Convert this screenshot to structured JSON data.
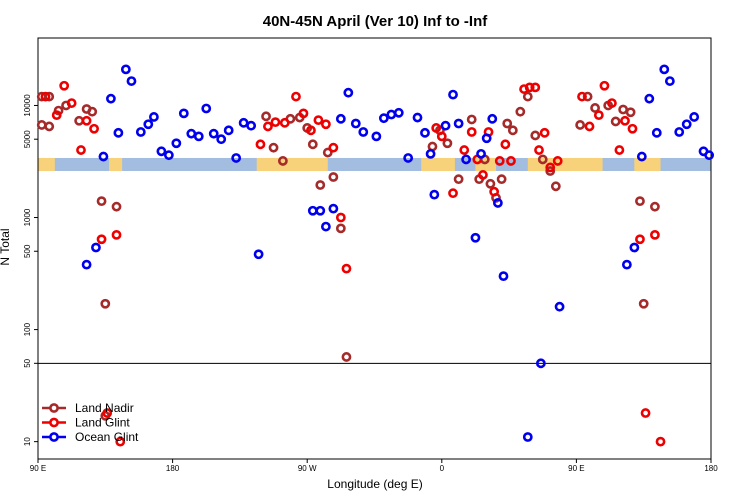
{
  "chart_data": {
    "type": "scatter",
    "title": "40N-45N April (Ver 10)   Inf to -Inf",
    "xlabel": "Longitude (deg E)",
    "ylabel": "N Total",
    "y_scale": "log",
    "ylim": [
      7,
      40000
    ],
    "xlim": [
      0,
      360
    ],
    "reference_line_y": 50,
    "x_ticks": [
      {
        "x": 0,
        "label": "90 E"
      },
      {
        "x": 72,
        "label": "180"
      },
      {
        "x": 144,
        "label": "90 W"
      },
      {
        "x": 216,
        "label": "0"
      },
      {
        "x": 288,
        "label": "90 E"
      },
      {
        "x": 360,
        "label": "180"
      }
    ],
    "y_ticks": [
      {
        "y": 10,
        "label": "10"
      },
      {
        "y": 50,
        "label": "50"
      },
      {
        "y": 100,
        "label": "100"
      },
      {
        "y": 500,
        "label": "500"
      },
      {
        "y": 1000,
        "label": "1000"
      },
      {
        "y": 5000,
        "label": "5000"
      },
      {
        "y": 10000,
        "label": "10000"
      }
    ],
    "land_mask_band": {
      "y_range": [
        2600,
        3400
      ],
      "ocean_color": "#a3bde0",
      "land_color": "#f7d27a",
      "land_segments": [
        [
          0,
          9
        ],
        [
          38,
          45
        ],
        [
          117,
          155
        ],
        [
          205,
          223
        ],
        [
          234,
          245
        ],
        [
          262,
          302
        ],
        [
          319,
          333
        ]
      ]
    },
    "legend": {
      "position": "bottom-left"
    },
    "series": [
      {
        "name": "Land Nadir",
        "color": "#a52a2a",
        "points": [
          {
            "x": 2,
            "y": 12000
          },
          {
            "x": 6,
            "y": 12000
          },
          {
            "x": 2,
            "y": 6700
          },
          {
            "x": 6,
            "y": 6500
          },
          {
            "x": 11,
            "y": 9000
          },
          {
            "x": 15,
            "y": 10000
          },
          {
            "x": 22,
            "y": 7300
          },
          {
            "x": 26,
            "y": 9300
          },
          {
            "x": 29,
            "y": 8800
          },
          {
            "x": 34,
            "y": 1400
          },
          {
            "x": 36,
            "y": 170
          },
          {
            "x": 42,
            "y": 1250
          },
          {
            "x": 36,
            "y": 17
          },
          {
            "x": 122,
            "y": 8000
          },
          {
            "x": 126,
            "y": 4200
          },
          {
            "x": 131,
            "y": 3200
          },
          {
            "x": 135,
            "y": 7600
          },
          {
            "x": 140,
            "y": 7800
          },
          {
            "x": 144,
            "y": 6300
          },
          {
            "x": 147,
            "y": 4500
          },
          {
            "x": 151,
            "y": 1950
          },
          {
            "x": 155,
            "y": 3800
          },
          {
            "x": 158,
            "y": 2300
          },
          {
            "x": 162,
            "y": 800
          },
          {
            "x": 165,
            "y": 57
          },
          {
            "x": 211,
            "y": 4300
          },
          {
            "x": 215,
            "y": 6000
          },
          {
            "x": 219,
            "y": 4600
          },
          {
            "x": 225,
            "y": 2200
          },
          {
            "x": 232,
            "y": 7500
          },
          {
            "x": 236,
            "y": 2200
          },
          {
            "x": 239,
            "y": 3300
          },
          {
            "x": 242,
            "y": 2000
          },
          {
            "x": 245,
            "y": 1500
          },
          {
            "x": 248,
            "y": 2200
          },
          {
            "x": 251,
            "y": 6900
          },
          {
            "x": 254,
            "y": 6000
          },
          {
            "x": 258,
            "y": 8800
          },
          {
            "x": 262,
            "y": 12000
          },
          {
            "x": 266,
            "y": 5400
          },
          {
            "x": 270,
            "y": 3300
          },
          {
            "x": 274,
            "y": 2600
          },
          {
            "x": 277,
            "y": 1900
          },
          {
            "x": 290,
            "y": 6700
          },
          {
            "x": 294,
            "y": 12000
          },
          {
            "x": 298,
            "y": 9500
          },
          {
            "x": 305,
            "y": 10000
          },
          {
            "x": 309,
            "y": 7200
          },
          {
            "x": 313,
            "y": 9200
          },
          {
            "x": 317,
            "y": 8700
          },
          {
            "x": 322,
            "y": 1400
          },
          {
            "x": 324,
            "y": 170
          },
          {
            "x": 330,
            "y": 1250
          }
        ]
      },
      {
        "name": "Land Glint",
        "color": "#ee0000",
        "points": [
          {
            "x": 4,
            "y": 12000
          },
          {
            "x": 10,
            "y": 8200
          },
          {
            "x": 14,
            "y": 15000
          },
          {
            "x": 18,
            "y": 10500
          },
          {
            "x": 23,
            "y": 4000
          },
          {
            "x": 26,
            "y": 7300
          },
          {
            "x": 30,
            "y": 6200
          },
          {
            "x": 34,
            "y": 640
          },
          {
            "x": 37,
            "y": 18
          },
          {
            "x": 42,
            "y": 700
          },
          {
            "x": 44,
            "y": 10
          },
          {
            "x": 119,
            "y": 4500
          },
          {
            "x": 123,
            "y": 6500
          },
          {
            "x": 127,
            "y": 7100
          },
          {
            "x": 132,
            "y": 7000
          },
          {
            "x": 138,
            "y": 12000
          },
          {
            "x": 142,
            "y": 8500
          },
          {
            "x": 146,
            "y": 6000
          },
          {
            "x": 150,
            "y": 7400
          },
          {
            "x": 154,
            "y": 6800
          },
          {
            "x": 158,
            "y": 4200
          },
          {
            "x": 162,
            "y": 1000
          },
          {
            "x": 165,
            "y": 350
          },
          {
            "x": 213,
            "y": 6300
          },
          {
            "x": 216,
            "y": 5300
          },
          {
            "x": 222,
            "y": 1650
          },
          {
            "x": 228,
            "y": 4000
          },
          {
            "x": 232,
            "y": 5800
          },
          {
            "x": 235,
            "y": 3300
          },
          {
            "x": 238,
            "y": 2400
          },
          {
            "x": 241,
            "y": 5800
          },
          {
            "x": 244,
            "y": 1700
          },
          {
            "x": 247,
            "y": 3200
          },
          {
            "x": 250,
            "y": 4500
          },
          {
            "x": 253,
            "y": 3200
          },
          {
            "x": 260,
            "y": 14000
          },
          {
            "x": 263,
            "y": 14500
          },
          {
            "x": 266,
            "y": 14500
          },
          {
            "x": 268,
            "y": 4000
          },
          {
            "x": 271,
            "y": 5700
          },
          {
            "x": 274,
            "y": 2800
          },
          {
            "x": 278,
            "y": 3200
          },
          {
            "x": 291,
            "y": 12000
          },
          {
            "x": 295,
            "y": 6500
          },
          {
            "x": 300,
            "y": 8200
          },
          {
            "x": 303,
            "y": 15000
          },
          {
            "x": 307,
            "y": 10500
          },
          {
            "x": 311,
            "y": 4000
          },
          {
            "x": 314,
            "y": 7300
          },
          {
            "x": 318,
            "y": 6200
          },
          {
            "x": 322,
            "y": 640
          },
          {
            "x": 325,
            "y": 18
          },
          {
            "x": 330,
            "y": 700
          },
          {
            "x": 333,
            "y": 10
          }
        ]
      },
      {
        "name": "Ocean Glint",
        "color": "#0000ee",
        "points": [
          {
            "x": 26,
            "y": 380
          },
          {
            "x": 31,
            "y": 540
          },
          {
            "x": 35,
            "y": 3500
          },
          {
            "x": 39,
            "y": 11500
          },
          {
            "x": 43,
            "y": 5700
          },
          {
            "x": 47,
            "y": 21000
          },
          {
            "x": 50,
            "y": 16500
          },
          {
            "x": 55,
            "y": 5800
          },
          {
            "x": 59,
            "y": 6800
          },
          {
            "x": 62,
            "y": 7900
          },
          {
            "x": 66,
            "y": 3900
          },
          {
            "x": 70,
            "y": 3600
          },
          {
            "x": 74,
            "y": 4600
          },
          {
            "x": 78,
            "y": 8500
          },
          {
            "x": 82,
            "y": 5600
          },
          {
            "x": 86,
            "y": 5300
          },
          {
            "x": 90,
            "y": 9400
          },
          {
            "x": 94,
            "y": 5600
          },
          {
            "x": 98,
            "y": 5000
          },
          {
            "x": 102,
            "y": 6000
          },
          {
            "x": 106,
            "y": 3400
          },
          {
            "x": 110,
            "y": 7000
          },
          {
            "x": 114,
            "y": 6600
          },
          {
            "x": 118,
            "y": 470
          },
          {
            "x": 147,
            "y": 1150
          },
          {
            "x": 151,
            "y": 1150
          },
          {
            "x": 154,
            "y": 830
          },
          {
            "x": 158,
            "y": 1200
          },
          {
            "x": 162,
            "y": 7600
          },
          {
            "x": 166,
            "y": 13000
          },
          {
            "x": 170,
            "y": 6900
          },
          {
            "x": 174,
            "y": 5800
          },
          {
            "x": 181,
            "y": 5300
          },
          {
            "x": 185,
            "y": 7700
          },
          {
            "x": 189,
            "y": 8300
          },
          {
            "x": 193,
            "y": 8600
          },
          {
            "x": 198,
            "y": 3400
          },
          {
            "x": 203,
            "y": 7800
          },
          {
            "x": 207,
            "y": 5700
          },
          {
            "x": 210,
            "y": 3700
          },
          {
            "x": 212,
            "y": 1600
          },
          {
            "x": 218,
            "y": 6600
          },
          {
            "x": 222,
            "y": 12500
          },
          {
            "x": 225,
            "y": 6900
          },
          {
            "x": 229,
            "y": 3300
          },
          {
            "x": 234,
            "y": 660
          },
          {
            "x": 237,
            "y": 3700
          },
          {
            "x": 240,
            "y": 5100
          },
          {
            "x": 243,
            "y": 7600
          },
          {
            "x": 246,
            "y": 1350
          },
          {
            "x": 249,
            "y": 300
          },
          {
            "x": 262,
            "y": 11
          },
          {
            "x": 269,
            "y": 50
          },
          {
            "x": 279,
            "y": 160
          },
          {
            "x": 315,
            "y": 380
          },
          {
            "x": 319,
            "y": 540
          },
          {
            "x": 323,
            "y": 3500
          },
          {
            "x": 327,
            "y": 11500
          },
          {
            "x": 331,
            "y": 5700
          },
          {
            "x": 335,
            "y": 21000
          },
          {
            "x": 338,
            "y": 16500
          },
          {
            "x": 343,
            "y": 5800
          },
          {
            "x": 347,
            "y": 6800
          },
          {
            "x": 351,
            "y": 7900
          },
          {
            "x": 356,
            "y": 3900
          },
          {
            "x": 359,
            "y": 3600
          }
        ]
      }
    ]
  }
}
